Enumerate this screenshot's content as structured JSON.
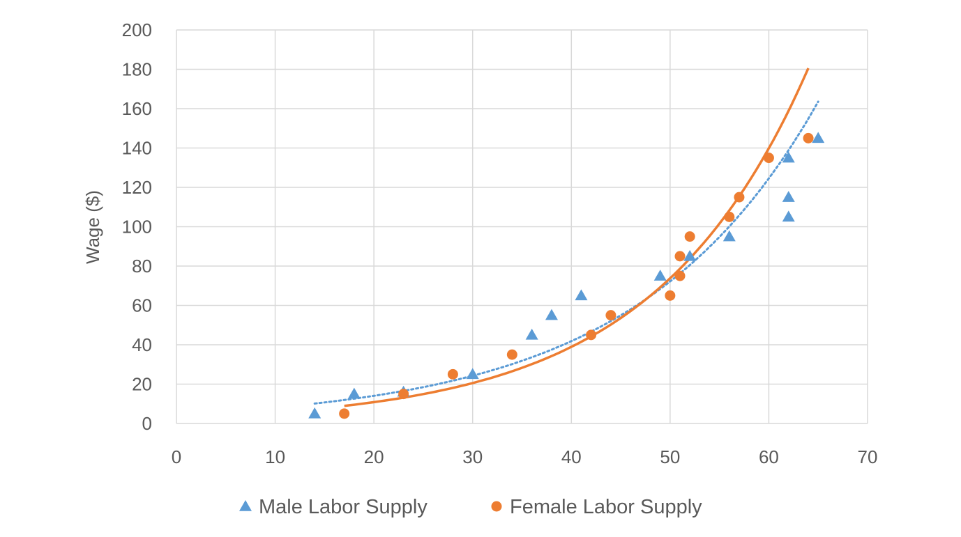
{
  "chart_data": {
    "type": "scatter",
    "title": "",
    "xlabel": "",
    "ylabel": "Wage ($)",
    "xlim": [
      0,
      70
    ],
    "ylim": [
      0,
      200
    ],
    "x_ticks": [
      0,
      10,
      20,
      30,
      40,
      50,
      60,
      70
    ],
    "y_ticks": [
      0,
      20,
      40,
      60,
      80,
      100,
      120,
      140,
      160,
      180,
      200
    ],
    "grid": true,
    "legend_position": "bottom",
    "series": [
      {
        "name": "Male Labor Supply",
        "marker": "triangle",
        "color": "#5b9bd5",
        "trendline": "exponential-dotted",
        "trend_x_range": [
          14,
          65
        ],
        "points": [
          {
            "x": 14,
            "y": 5
          },
          {
            "x": 18,
            "y": 15
          },
          {
            "x": 23,
            "y": 16
          },
          {
            "x": 30,
            "y": 25
          },
          {
            "x": 36,
            "y": 45
          },
          {
            "x": 38,
            "y": 55
          },
          {
            "x": 41,
            "y": 65
          },
          {
            "x": 49,
            "y": 75
          },
          {
            "x": 52,
            "y": 85
          },
          {
            "x": 56,
            "y": 95
          },
          {
            "x": 62,
            "y": 105
          },
          {
            "x": 62,
            "y": 115
          },
          {
            "x": 62,
            "y": 135
          },
          {
            "x": 65,
            "y": 145
          }
        ]
      },
      {
        "name": "Female Labor Supply",
        "marker": "circle",
        "color": "#ed7d31",
        "trendline": "exponential-solid",
        "trend_x_range": [
          17,
          64
        ],
        "points": [
          {
            "x": 17,
            "y": 5
          },
          {
            "x": 23,
            "y": 15
          },
          {
            "x": 28,
            "y": 25
          },
          {
            "x": 34,
            "y": 35
          },
          {
            "x": 42,
            "y": 45
          },
          {
            "x": 44,
            "y": 55
          },
          {
            "x": 50,
            "y": 65
          },
          {
            "x": 51,
            "y": 75
          },
          {
            "x": 51,
            "y": 85
          },
          {
            "x": 52,
            "y": 95
          },
          {
            "x": 56,
            "y": 105
          },
          {
            "x": 57,
            "y": 115
          },
          {
            "x": 60,
            "y": 135
          },
          {
            "x": 64,
            "y": 145
          }
        ]
      }
    ]
  }
}
